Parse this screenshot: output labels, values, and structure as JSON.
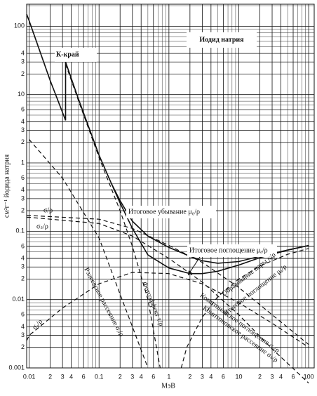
{
  "chart_data": {
    "type": "line",
    "title": "Иодид натрия",
    "xlabel": "МэВ",
    "ylabel": "см²г⁻¹ йодида натрия",
    "log_x": true,
    "log_y": true,
    "grid": true,
    "xlim": [
      0.0092,
      120
    ],
    "ylim": [
      0.001,
      210
    ],
    "xticks": [
      0.01,
      {
        "value": 0.02,
        "label": "2"
      },
      {
        "value": 0.03,
        "label": "3"
      },
      {
        "value": 0.04,
        "label": "4"
      },
      {
        "value": 0.06,
        "label": "6"
      },
      0.1,
      {
        "value": 0.2,
        "label": "2"
      },
      {
        "value": 0.3,
        "label": "3"
      },
      {
        "value": 0.4,
        "label": "4"
      },
      {
        "value": 0.6,
        "label": "6"
      },
      1,
      {
        "value": 2,
        "label": "2"
      },
      {
        "value": 3,
        "label": "3"
      },
      {
        "value": 4,
        "label": "4"
      },
      {
        "value": 6,
        "label": "6"
      },
      10,
      {
        "value": 20,
        "label": "2"
      },
      {
        "value": 30,
        "label": "3"
      },
      {
        "value": 40,
        "label": "4"
      },
      {
        "value": 60,
        "label": "6"
      },
      100
    ],
    "xminor": [
      0.05,
      0.07,
      0.08,
      0.09,
      0.5,
      0.7,
      0.8,
      0.9,
      5,
      7,
      8,
      9,
      50,
      70,
      80,
      90
    ],
    "yticks": [
      100,
      {
        "value": 40,
        "label": "4"
      },
      {
        "value": 30,
        "label": "3"
      },
      {
        "value": 20,
        "label": "2"
      },
      10,
      {
        "value": 6,
        "label": "6"
      },
      {
        "value": 4,
        "label": "4"
      },
      {
        "value": 3,
        "label": "3"
      },
      {
        "value": 2,
        "label": "2"
      },
      1,
      {
        "value": 0.6,
        "label": "6"
      },
      {
        "value": 0.4,
        "label": "4"
      },
      {
        "value": 0.3,
        "label": "3"
      },
      {
        "value": 0.2,
        "label": "2"
      },
      0.1,
      {
        "value": 0.06,
        "label": "6"
      },
      {
        "value": 0.04,
        "label": "4"
      },
      {
        "value": 0.03,
        "label": "3"
      },
      {
        "value": 0.02,
        "label": "2"
      },
      0.01,
      {
        "value": 0.006,
        "label": "6"
      },
      {
        "value": 0.004,
        "label": "4"
      },
      {
        "value": 0.003,
        "label": "3"
      },
      {
        "value": 0.002,
        "label": "2"
      },
      0.001
    ],
    "yminor": [
      200,
      60,
      50,
      70,
      80,
      90,
      5,
      7,
      8,
      9,
      0.5,
      0.7,
      0.8,
      0.9,
      0.05,
      0.07,
      0.08,
      0.09,
      0.005,
      0.007,
      0.008,
      0.009
    ],
    "series": [
      {
        "name": "Итоговое убывание μ₀/ρ",
        "color": "#111111",
        "style": "solid",
        "x": [
          0.0092,
          0.01,
          0.02,
          0.0332,
          0.0332,
          0.05,
          0.1,
          0.15,
          0.2,
          0.3,
          0.5,
          1,
          2,
          3,
          5,
          10,
          20,
          50,
          100
        ],
        "values": [
          150,
          120,
          16,
          4.2,
          30,
          9,
          1.3,
          0.5,
          0.28,
          0.14,
          0.085,
          0.058,
          0.043,
          0.037,
          0.034,
          0.036,
          0.043,
          0.053,
          0.062
        ]
      },
      {
        "name": "Итоговое поглощение μₐ/ρ",
        "color": "#111111",
        "style": "solid",
        "x": [
          0.15,
          0.2,
          0.3,
          0.5,
          1,
          2,
          3,
          5,
          10,
          20,
          50,
          100
        ],
        "values": [
          0.5,
          0.26,
          0.11,
          0.045,
          0.029,
          0.024,
          0.024,
          0.026,
          0.032,
          0.041,
          0.053,
          0.062
        ]
      },
      {
        "name": "σ/ρ",
        "color": "#111111",
        "style": "dashed",
        "x": [
          0.0092,
          0.01,
          0.1,
          0.3,
          1,
          3,
          10,
          30,
          100
        ],
        "values": [
          0.17,
          0.17,
          0.15,
          0.11,
          0.062,
          0.035,
          0.015,
          0.006,
          0.0022
        ]
      },
      {
        "name": "Комптоновское рассеяние σₛ/ρ",
        "color": "#111111",
        "style": "dashed",
        "x": [
          0.0092,
          0.01,
          0.1,
          0.3,
          1,
          3,
          10,
          30,
          100
        ],
        "values": [
          0.16,
          0.16,
          0.13,
          0.085,
          0.04,
          0.018,
          0.006,
          0.0019,
          0.0006
        ]
      },
      {
        "name": "Комптоновское поглощение σₐ/ρ",
        "color": "#111111",
        "style": "dashed",
        "x": [
          0.0092,
          0.01,
          0.03,
          0.1,
          0.3,
          1,
          3,
          10,
          30,
          100
        ],
        "values": [
          0.0025,
          0.003,
          0.0075,
          0.017,
          0.025,
          0.024,
          0.017,
          0.009,
          0.0045,
          0.002
        ]
      },
      {
        "name": "Фотоэффект τ/ρ",
        "color": "#111111",
        "style": "dashed",
        "x": [
          0.0332,
          0.05,
          0.1,
          0.2,
          0.3,
          0.5,
          0.75
        ],
        "values": [
          28,
          8.5,
          1.2,
          0.2,
          0.06,
          0.01,
          0.001
        ]
      },
      {
        "name": "Рэлеевское рассеяние σᵣ/ρ",
        "color": "#111111",
        "style": "dashed",
        "x": [
          0.01,
          0.03,
          0.1,
          0.2,
          0.3,
          0.5
        ],
        "values": [
          2.2,
          0.6,
          0.08,
          0.012,
          0.004,
          0.001
        ]
      },
      {
        "name": "Образование пары κ/ρ",
        "color": "#111111",
        "style": "dashed",
        "x": [
          1.5,
          1.8,
          2.2,
          3,
          5,
          10,
          20,
          50,
          100
        ],
        "values": [
          0.001,
          0.002,
          0.003,
          0.0055,
          0.011,
          0.02,
          0.031,
          0.046,
          0.056
        ]
      }
    ],
    "annotations": [
      "К-край",
      "Итоговое поглощение μₐ/ρ",
      "σₛ/ρ",
      "σₐ/ρ"
    ]
  }
}
